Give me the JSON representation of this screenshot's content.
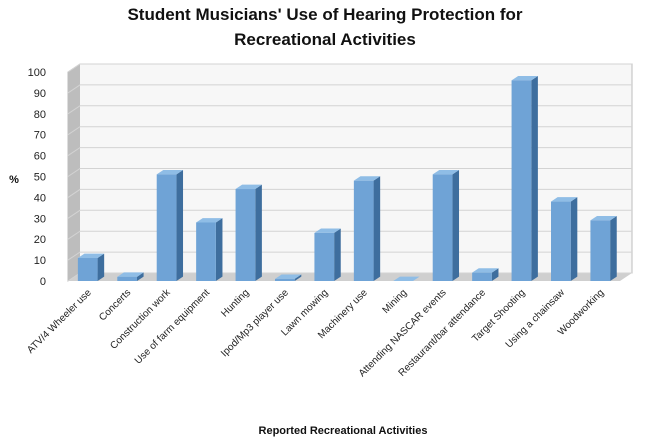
{
  "chart_data": {
    "type": "bar",
    "title": "Student Musicians' Use of Hearing Protection for Recreational Activities",
    "title_lines": [
      "Student Musicians' Use of Hearing Protection for",
      "Recreational Activities"
    ],
    "xlabel": "Reported Recreational Activities",
    "ylabel": "%",
    "ylim": [
      0,
      100
    ],
    "yticks": [
      0,
      10,
      20,
      30,
      40,
      50,
      60,
      70,
      80,
      90,
      100
    ],
    "grid": true,
    "style": "3d-column",
    "colors": {
      "bar_front": "#6fa3d6",
      "bar_side": "#3e6e9e",
      "bar_top": "#8fbde6",
      "wall": "#f7f7f7",
      "floor": "#cfcfcf"
    },
    "categories": [
      "ATV/4 Wheeler use",
      "Concerts",
      "Construction work",
      "Use of farm equipment",
      "Hunting",
      "Ipod/Mp3 player use",
      "Lawn mowing",
      "Machinery use",
      "Mining",
      "Attending NASCAR events",
      "Restaurant/bar attendance",
      "Target Shooting",
      "Using a chainsaw",
      "Woodworking"
    ],
    "values": [
      11,
      2,
      51,
      28,
      44,
      1,
      23,
      48,
      0,
      51,
      4,
      96,
      38,
      29
    ]
  }
}
